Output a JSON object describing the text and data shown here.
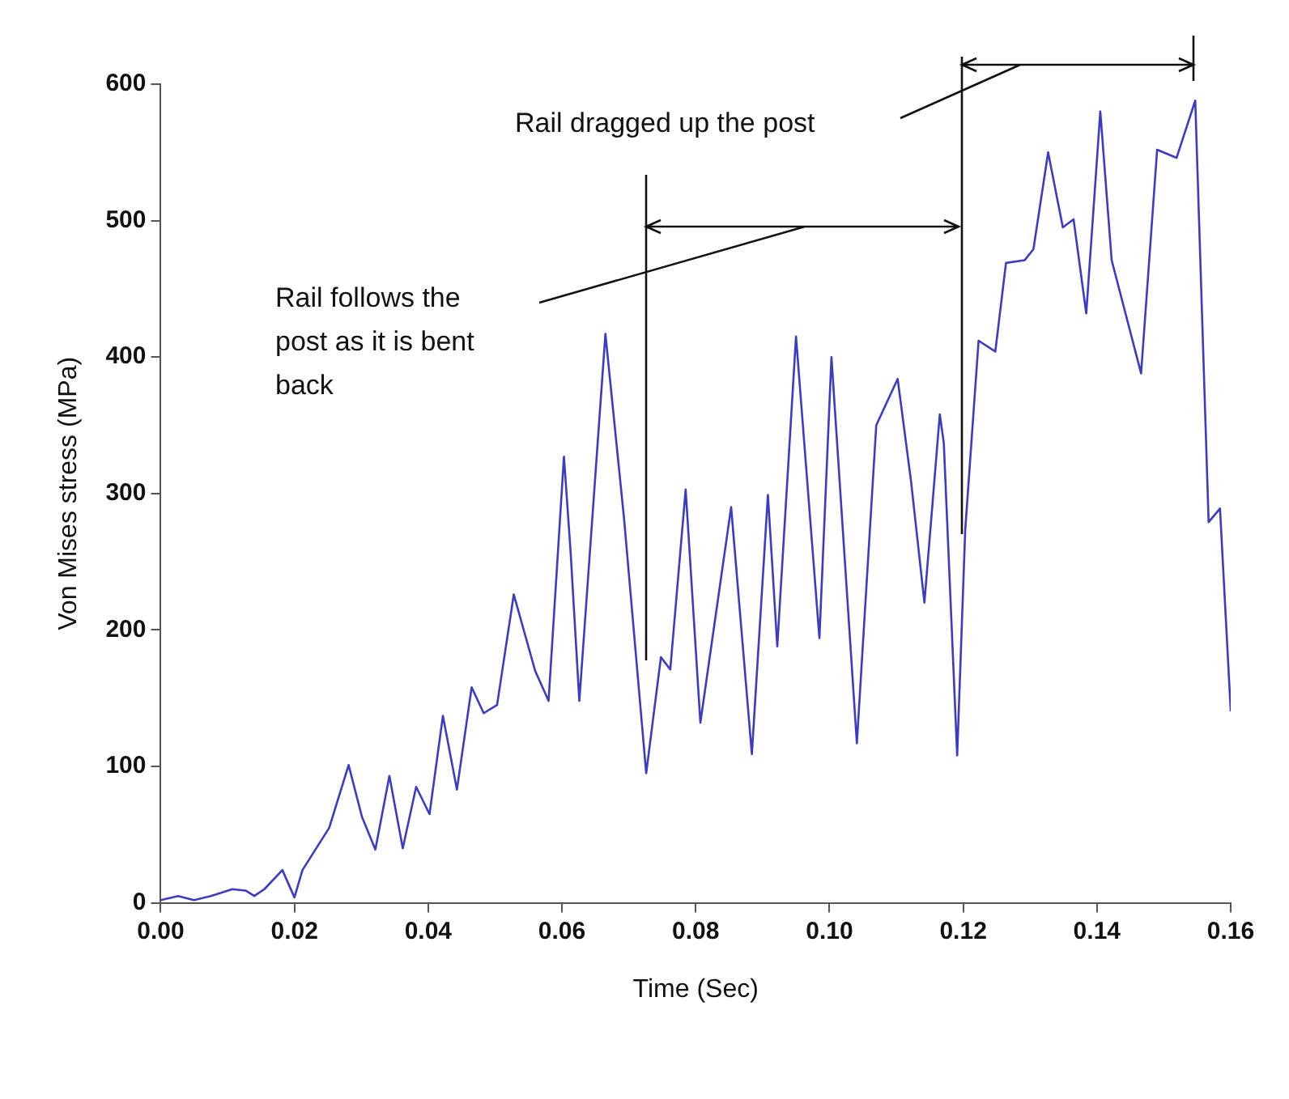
{
  "chart_data": {
    "type": "line",
    "xlabel": "Time (Sec)",
    "ylabel": "Von Mises stress (MPa)",
    "xlim": [
      0,
      0.16
    ],
    "ylim": [
      0,
      600
    ],
    "xticks": [
      {
        "value": 0,
        "label": "0.00"
      },
      {
        "value": 0.02,
        "label": "0.02"
      },
      {
        "value": 0.04,
        "label": "0.04"
      },
      {
        "value": 0.06,
        "label": "0.06"
      },
      {
        "value": 0.08,
        "label": "0.08"
      },
      {
        "value": 0.1,
        "label": "0.10"
      },
      {
        "value": 0.12,
        "label": "0.12"
      },
      {
        "value": 0.14,
        "label": "0.14"
      },
      {
        "value": 0.16,
        "label": "0.16"
      }
    ],
    "yticks": [
      0,
      100,
      200,
      300,
      400,
      500,
      600
    ],
    "grid": false,
    "legend": false,
    "marker": "none",
    "line_style": "solid",
    "series": [
      {
        "color": "#3b3bc4",
        "x": [
          0,
          0.0026,
          0.005,
          0.0075,
          0.0107,
          0.0127,
          0.014,
          0.0155,
          0.0182,
          0.02,
          0.0212,
          0.0252,
          0.0281,
          0.0301,
          0.0321,
          0.0342,
          0.0362,
          0.0382,
          0.0402,
          0.0422,
          0.0443,
          0.0465,
          0.0483,
          0.0503,
          0.0528,
          0.056,
          0.058,
          0.0603,
          0.0613,
          0.0626,
          0.0665,
          0.0693,
          0.0726,
          0.0748,
          0.0762,
          0.0785,
          0.0807,
          0.0853,
          0.0884,
          0.0908,
          0.0922,
          0.095,
          0.0985,
          0.1003,
          0.1041,
          0.107,
          0.1102,
          0.1122,
          0.1142,
          0.1165,
          0.1171,
          0.1191,
          0.1203,
          0.1223,
          0.1248,
          0.1264,
          0.1292,
          0.1305,
          0.1327,
          0.1349,
          0.1365,
          0.1384,
          0.1405,
          0.1422,
          0.1466,
          0.149,
          0.1519,
          0.1547,
          0.1567,
          0.1584,
          0.16
        ],
        "values": [
          2,
          5,
          2,
          5,
          10,
          9,
          5,
          10,
          24,
          4,
          24,
          55,
          101,
          63,
          39,
          93,
          40,
          85,
          65,
          137,
          83,
          158,
          139,
          145,
          226,
          170,
          148,
          327,
          257,
          148,
          417,
          281,
          95,
          180,
          171,
          303,
          132,
          290,
          109,
          299,
          188,
          415,
          194,
          400,
          117,
          350,
          384,
          309,
          220,
          358,
          337,
          108,
          273,
          412,
          404,
          469,
          471,
          479,
          550,
          495,
          501,
          432,
          580,
          471,
          388,
          552,
          546,
          588,
          279,
          289,
          141
        ]
      }
    ],
    "annotations": [
      "Rail follows the post as it is bent back",
      "Rail dragged up the post"
    ]
  }
}
